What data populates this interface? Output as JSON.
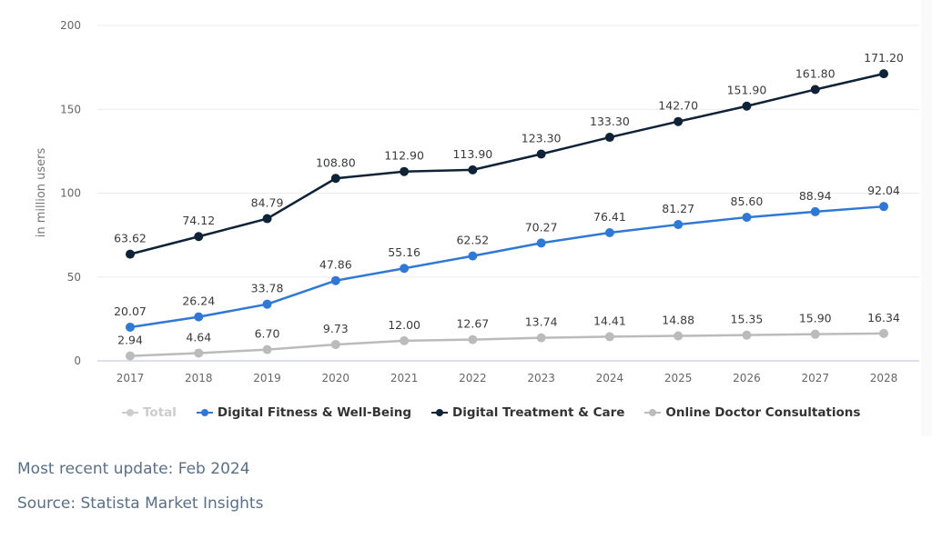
{
  "chart_data": {
    "type": "line",
    "title": "",
    "xlabel": "",
    "ylabel": "in million users",
    "ylim": [
      0,
      200
    ],
    "yticks": [
      0,
      50,
      100,
      150,
      200
    ],
    "grid": true,
    "legend_position": "bottom-left",
    "categories": [
      "2017",
      "2018",
      "2019",
      "2020",
      "2021",
      "2022",
      "2023",
      "2024",
      "2025",
      "2026",
      "2027",
      "2028"
    ],
    "series": [
      {
        "name": "Total",
        "color": "#cccccc",
        "visible": false,
        "values": []
      },
      {
        "name": "Digital Fitness & Well-Being",
        "color": "#2f78d6",
        "visible": true,
        "values": [
          20.07,
          26.24,
          33.78,
          47.86,
          55.16,
          62.52,
          70.27,
          76.41,
          81.27,
          85.6,
          88.94,
          92.04
        ],
        "labels": [
          "20.07",
          "26.24",
          "33.78",
          "47.86",
          "55.16",
          "62.52",
          "70.27",
          "76.41",
          "81.27",
          "85.60",
          "88.94",
          "92.04"
        ]
      },
      {
        "name": "Digital Treatment & Care",
        "color": "#0e2238",
        "visible": true,
        "values": [
          63.62,
          74.12,
          84.79,
          108.8,
          112.9,
          113.9,
          123.3,
          133.3,
          142.7,
          151.9,
          161.8,
          171.2
        ],
        "labels": [
          "63.62",
          "74.12",
          "84.79",
          "108.80",
          "112.90",
          "113.90",
          "123.30",
          "133.30",
          "142.70",
          "151.90",
          "161.80",
          "171.20"
        ]
      },
      {
        "name": "Online Doctor Consultations",
        "color": "#bbbbbb",
        "visible": true,
        "values": [
          2.94,
          4.64,
          6.7,
          9.73,
          12.0,
          12.67,
          13.74,
          14.41,
          14.88,
          15.35,
          15.9,
          16.34
        ],
        "labels": [
          "2.94",
          "4.64",
          "6.70",
          "9.73",
          "12.00",
          "12.67",
          "13.74",
          "14.41",
          "14.88",
          "15.35",
          "15.90",
          "16.34"
        ]
      }
    ]
  },
  "footer": {
    "update": "Most recent update: Feb 2024",
    "source": "Source: Statista Market Insights"
  }
}
